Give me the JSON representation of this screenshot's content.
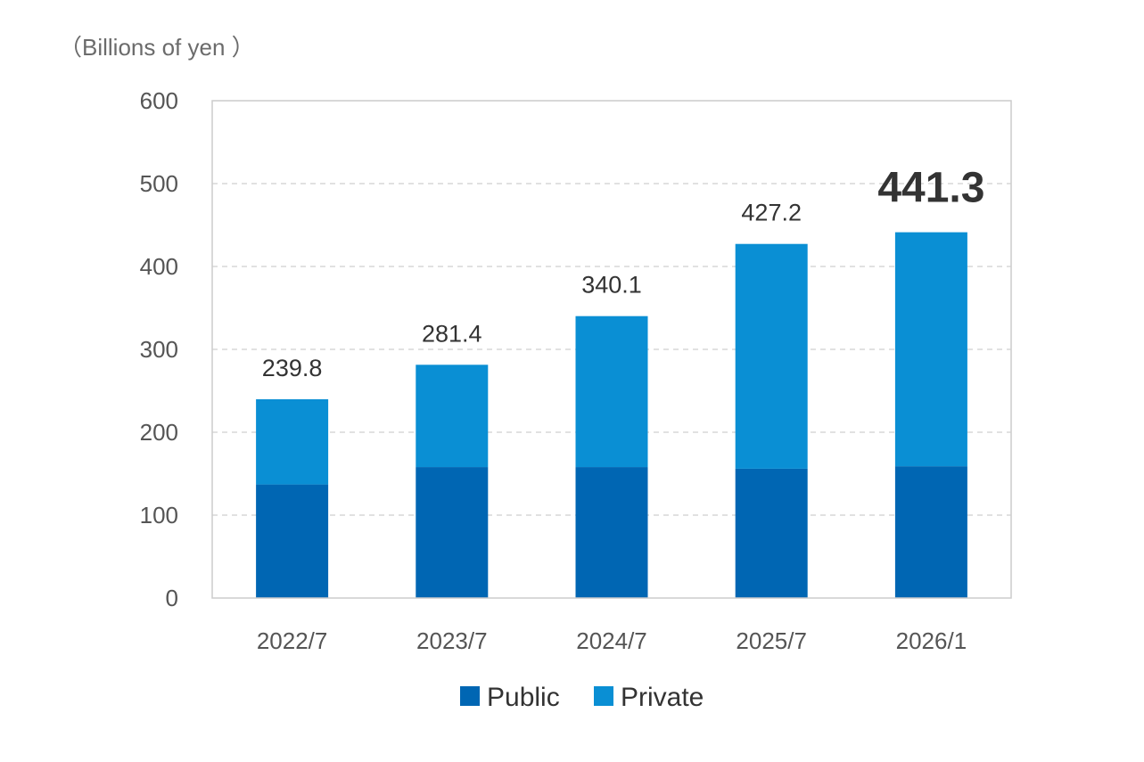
{
  "chart_data": {
    "type": "bar",
    "stacked": true,
    "unit_label": "（Billions of yen ）",
    "categories": [
      "2022/7",
      "2023/7",
      "2024/7",
      "2025/7",
      "2026/1"
    ],
    "series": [
      {
        "name": "Public",
        "color": "#0066b3",
        "values": [
          137,
          158,
          158,
          156,
          159
        ]
      },
      {
        "name": "Private",
        "color": "#0a8fd4",
        "values": [
          102.8,
          123.4,
          182.1,
          271.2,
          282.3
        ]
      }
    ],
    "totals": [
      "239.8",
      "281.4",
      "340.1",
      "427.2",
      "441.3"
    ],
    "emphasized_total_index": 4,
    "ylim": [
      0,
      600
    ],
    "yticks": [
      0,
      100,
      200,
      300,
      400,
      500,
      600
    ],
    "grid": true,
    "legend_position": "bottom"
  }
}
